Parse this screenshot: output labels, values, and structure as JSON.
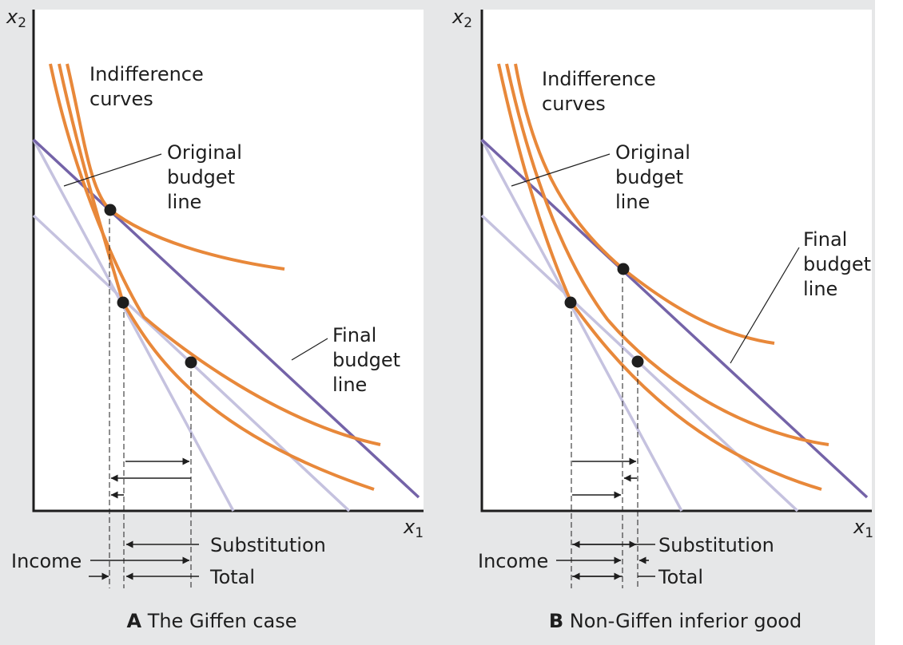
{
  "panels": [
    {
      "id": "a",
      "caption_letter": "A",
      "caption_text": "The Giffen case",
      "axis_y": "x",
      "axis_y_sub": "2",
      "axis_x": "x",
      "axis_x_sub": "1",
      "indifference_label": [
        "Indifference",
        "curves"
      ],
      "original_label": [
        "Original",
        "budget",
        "line"
      ],
      "final_label": [
        "Final",
        "budget",
        "line"
      ],
      "substitution": "Substitution",
      "income": "Income",
      "total": "Total"
    },
    {
      "id": "b",
      "caption_letter": "B",
      "caption_text": "Non-Giffen inferior good",
      "axis_y": "x",
      "axis_y_sub": "2",
      "axis_x": "x",
      "axis_x_sub": "1",
      "indifference_label": [
        "Indifference",
        "curves"
      ],
      "original_label": [
        "Original",
        "budget",
        "line"
      ],
      "final_label": [
        "Final",
        "budget",
        "line"
      ],
      "substitution": "Substitution",
      "income": "Income",
      "total": "Total"
    }
  ],
  "colors": {
    "background": "#e6e7e8",
    "plot": "#ffffff",
    "indifference": "#e8883a",
    "final_budget": "#7463a8",
    "other_budget": "#c5c2df",
    "axis": "#1e1e1e",
    "point": "#1e1e1e"
  }
}
